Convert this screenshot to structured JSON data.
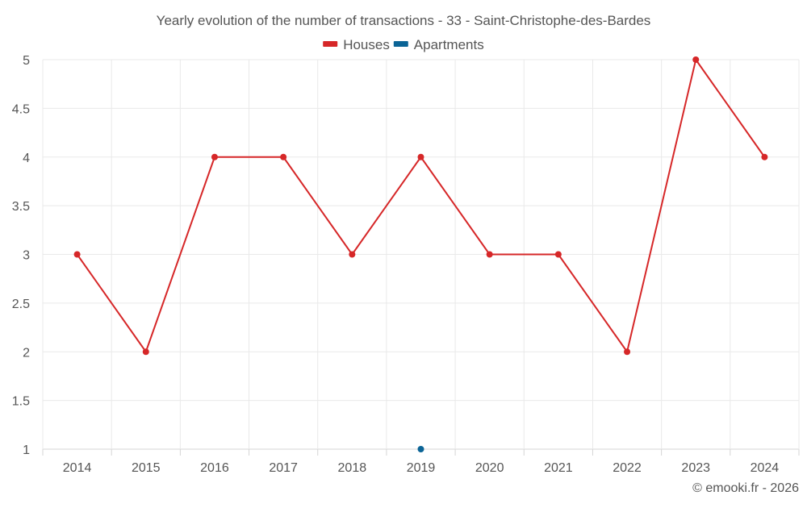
{
  "chart_data": {
    "type": "line",
    "title": "Yearly evolution of the number of transactions - 33 - Saint-Christophe-des-Bardes",
    "categories": [
      "2014",
      "2015",
      "2016",
      "2017",
      "2018",
      "2019",
      "2020",
      "2021",
      "2022",
      "2023",
      "2024"
    ],
    "series": [
      {
        "name": "Houses",
        "color": "#d62728",
        "values": [
          3,
          2,
          4,
          4,
          3,
          4,
          3,
          3,
          2,
          5,
          4
        ]
      },
      {
        "name": "Apartments",
        "color": "#0b6496",
        "values": [
          null,
          null,
          null,
          null,
          null,
          1,
          null,
          null,
          null,
          null,
          null
        ]
      }
    ],
    "ylim": [
      1,
      5
    ],
    "yticks": [
      "1",
      "1.5",
      "2",
      "2.5",
      "3",
      "3.5",
      "4",
      "4.5",
      "5"
    ],
    "xlabel": "",
    "ylabel": "",
    "grid": true,
    "legend_position": "top-center"
  },
  "footer": {
    "credit": "© emooki.fr - 2026"
  },
  "colors": {
    "grid": "#e9e9e9",
    "axis": "#d5d5d5",
    "text": "#555555"
  }
}
